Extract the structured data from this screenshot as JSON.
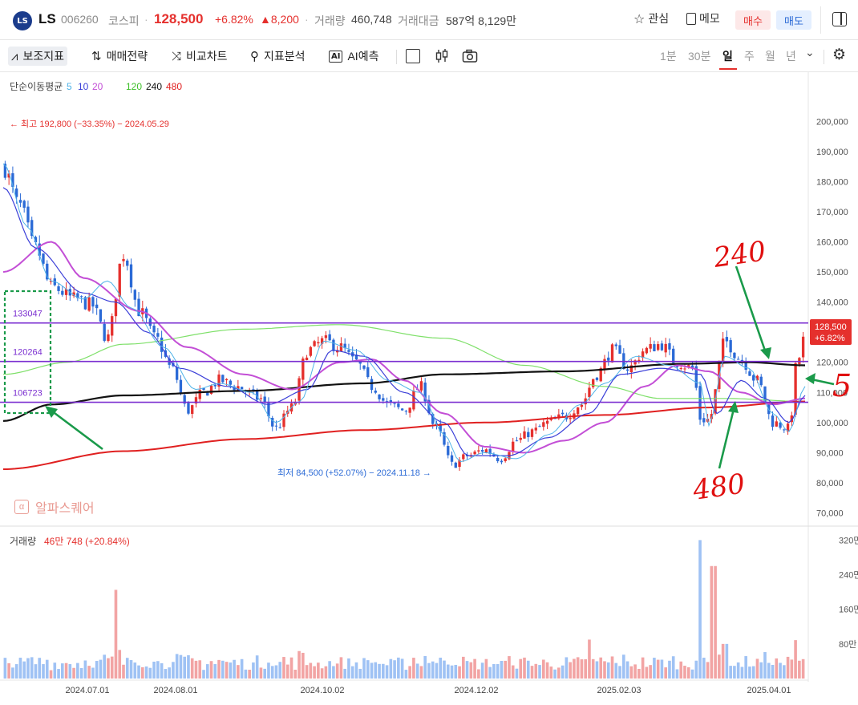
{
  "header": {
    "logo_text": "LS",
    "name": "LS",
    "code": "006260",
    "market": "코스피",
    "dot": "·",
    "price": "128,500",
    "change_pct": "+6.82%",
    "change_abs": "▲8,200",
    "volume_label": "거래량",
    "volume": "460,748",
    "amount_label": "거래대금",
    "amount": "587억 8,129만",
    "watch_label": "관심",
    "memo_label": "메모",
    "buy_label": "매수",
    "sell_label": "매도",
    "icons": [
      "star-icon",
      "memo-icon",
      "panel-toggle-icon"
    ]
  },
  "toolbar": {
    "indicators": "보조지표",
    "strategy": "매매전략",
    "compare": "비교차트",
    "analysis": "지표분석",
    "ai": "AI예측",
    "periods": [
      "1분",
      "30분",
      "일",
      "주",
      "월",
      "년"
    ],
    "selected_period": "일",
    "icons": [
      "indicator-icon",
      "strategy-icon",
      "compare-icon",
      "analysis-icon",
      "ai-icon",
      "draw-box-icon",
      "candle-icon",
      "camera-icon",
      "chevron-down-icon",
      "settings-icon"
    ]
  },
  "watermark": "알파스퀘어",
  "colors": {
    "up": "#e5302d",
    "down": "#2b6ad6",
    "ma5": "#4fb3e8",
    "ma10": "#3b3fd8",
    "ma20": "#c34fd6",
    "ma120": "#7fe06a",
    "ma240": "#111111",
    "ma480": "#e02020",
    "hline": "#7b2fd0",
    "annotation_green": "#1a9a4a",
    "annotation_red": "#e01010"
  },
  "chart_data": {
    "type": "candlestick",
    "ma_legend": {
      "label": "단순이동평균",
      "periods": [
        "5",
        "10",
        "20",
        "120",
        "240",
        "480"
      ]
    },
    "y_axis": {
      "ticks": [
        "200,000",
        "190,000",
        "180,000",
        "170,000",
        "160,000",
        "150,000",
        "140,000",
        "130,000",
        "120,000",
        "110,000",
        "100,000",
        "90,000",
        "80,000",
        "70,000"
      ],
      "range": [
        68000,
        207000
      ]
    },
    "x_axis": {
      "ticks": [
        "2024.07.01",
        "2024.08.01",
        "2024.10.02",
        "2024.12.02",
        "2025.02.03",
        "2025.04.01"
      ]
    },
    "price_tag": {
      "price": "128,500",
      "pct": "+6.82%"
    },
    "high_label": "← 최고 192,800 (−33.35%) − 2024.05.29",
    "low_label": "최저 84,500 (+52.07%) − 2024.11.18 →",
    "horizontal_lines": [
      {
        "value": 133047,
        "label": "133047"
      },
      {
        "value": 120264,
        "label": "120264"
      },
      {
        "value": 106723,
        "label": "106723"
      }
    ],
    "ma_lines": [
      {
        "name": "120",
        "points": [
          [
            0,
            116000
          ],
          [
            0.08,
            120000
          ],
          [
            0.15,
            126000
          ],
          [
            0.3,
            131000
          ],
          [
            0.42,
            132500
          ],
          [
            0.55,
            128000
          ],
          [
            0.65,
            119000
          ],
          [
            0.75,
            112000
          ],
          [
            0.82,
            108000
          ],
          [
            0.9,
            108000
          ],
          [
            1.0,
            107000
          ]
        ]
      },
      {
        "name": "240",
        "points": [
          [
            0,
            100500
          ],
          [
            0.06,
            106000
          ],
          [
            0.15,
            109000
          ],
          [
            0.3,
            110500
          ],
          [
            0.45,
            113000
          ],
          [
            0.55,
            116000
          ],
          [
            0.7,
            117000
          ],
          [
            0.85,
            119500
          ],
          [
            0.93,
            120000
          ],
          [
            1.0,
            119000
          ]
        ]
      },
      {
        "name": "480",
        "points": [
          [
            0,
            84500
          ],
          [
            0.15,
            90500
          ],
          [
            0.3,
            94500
          ],
          [
            0.45,
            97500
          ],
          [
            0.6,
            100000
          ],
          [
            0.75,
            102500
          ],
          [
            0.88,
            105000
          ],
          [
            1.0,
            107000
          ]
        ]
      },
      {
        "name": "20",
        "points": [
          [
            0,
            150000
          ],
          [
            0.06,
            160000
          ],
          [
            0.1,
            148000
          ],
          [
            0.17,
            137000
          ],
          [
            0.23,
            125000
          ],
          [
            0.3,
            116000
          ],
          [
            0.36,
            111000
          ],
          [
            0.42,
            120000
          ],
          [
            0.46,
            121000
          ],
          [
            0.5,
            114000
          ],
          [
            0.55,
            103000
          ],
          [
            0.6,
            92000
          ],
          [
            0.65,
            90000
          ],
          [
            0.7,
            94000
          ],
          [
            0.75,
            100000
          ],
          [
            0.8,
            112000
          ],
          [
            0.84,
            119000
          ],
          [
            0.88,
            117000
          ],
          [
            0.92,
            110000
          ],
          [
            0.96,
            106000
          ],
          [
            1.0,
            108000
          ]
        ]
      },
      {
        "name": "10",
        "points": [
          [
            0,
            178000
          ],
          [
            0.04,
            158000
          ],
          [
            0.1,
            143000
          ],
          [
            0.14,
            140000
          ],
          [
            0.18,
            130000
          ],
          [
            0.22,
            118000
          ],
          [
            0.28,
            112000
          ],
          [
            0.33,
            106000
          ],
          [
            0.38,
            111000
          ],
          [
            0.41,
            124000
          ],
          [
            0.45,
            122000
          ],
          [
            0.5,
            110000
          ],
          [
            0.55,
            100000
          ],
          [
            0.58,
            89000
          ],
          [
            0.63,
            89000
          ],
          [
            0.68,
            95000
          ],
          [
            0.73,
            103000
          ],
          [
            0.77,
            116000
          ],
          [
            0.82,
            118000
          ],
          [
            0.87,
            116000
          ],
          [
            0.89,
            103000
          ],
          [
            0.92,
            114000
          ],
          [
            0.95,
            108000
          ],
          [
            0.98,
            100000
          ],
          [
            1.0,
            109000
          ]
        ]
      },
      {
        "name": "5",
        "points": [
          [
            0,
            186000
          ],
          [
            0.03,
            165000
          ],
          [
            0.06,
            147000
          ],
          [
            0.1,
            141000
          ],
          [
            0.13,
            147000
          ],
          [
            0.16,
            138000
          ],
          [
            0.2,
            125000
          ],
          [
            0.24,
            111000
          ],
          [
            0.27,
            113000
          ],
          [
            0.31,
            110000
          ],
          [
            0.34,
            100000
          ],
          [
            0.37,
            107000
          ],
          [
            0.4,
            127000
          ],
          [
            0.44,
            124000
          ],
          [
            0.48,
            114000
          ],
          [
            0.52,
            110000
          ],
          [
            0.55,
            96000
          ],
          [
            0.57,
            87000
          ],
          [
            0.6,
            90000
          ],
          [
            0.64,
            88000
          ],
          [
            0.68,
            96000
          ],
          [
            0.72,
            106000
          ],
          [
            0.75,
            113000
          ],
          [
            0.79,
            122000
          ],
          [
            0.83,
            119000
          ],
          [
            0.87,
            113000
          ],
          [
            0.88,
            99000
          ],
          [
            0.9,
            122000
          ],
          [
            0.93,
            118000
          ],
          [
            0.96,
            103000
          ],
          [
            0.98,
            97000
          ],
          [
            1.0,
            112000
          ]
        ]
      }
    ],
    "candles_anchor": [
      [
        0,
        185000
      ],
      [
        0.02,
        172000
      ],
      [
        0.04,
        158000
      ],
      [
        0.06,
        145000
      ],
      [
        0.09,
        141000
      ],
      [
        0.11,
        139000
      ],
      [
        0.13,
        128000
      ],
      [
        0.15,
        156000
      ],
      [
        0.17,
        137000
      ],
      [
        0.19,
        128000
      ],
      [
        0.21,
        118000
      ],
      [
        0.23,
        104000
      ],
      [
        0.25,
        110000
      ],
      [
        0.27,
        114000
      ],
      [
        0.29,
        112000
      ],
      [
        0.32,
        108000
      ],
      [
        0.34,
        98000
      ],
      [
        0.36,
        105000
      ],
      [
        0.38,
        124000
      ],
      [
        0.4,
        127000
      ],
      [
        0.42,
        125000
      ],
      [
        0.44,
        120000
      ],
      [
        0.46,
        112000
      ],
      [
        0.48,
        106000
      ],
      [
        0.5,
        104000
      ],
      [
        0.52,
        112000
      ],
      [
        0.54,
        98000
      ],
      [
        0.56,
        86000
      ],
      [
        0.58,
        89000
      ],
      [
        0.6,
        91000
      ],
      [
        0.62,
        88000
      ],
      [
        0.64,
        94000
      ],
      [
        0.66,
        97000
      ],
      [
        0.68,
        100000
      ],
      [
        0.7,
        102000
      ],
      [
        0.72,
        106000
      ],
      [
        0.74,
        116000
      ],
      [
        0.76,
        124000
      ],
      [
        0.78,
        118000
      ],
      [
        0.8,
        124000
      ],
      [
        0.82,
        126000
      ],
      [
        0.84,
        120000
      ],
      [
        0.86,
        118000
      ],
      [
        0.87,
        101000
      ],
      [
        0.88,
        101000
      ],
      [
        0.9,
        127000
      ],
      [
        0.92,
        121000
      ],
      [
        0.94,
        114000
      ],
      [
        0.96,
        100000
      ],
      [
        0.98,
        98000
      ],
      [
        0.99,
        120000
      ],
      [
        1.0,
        128500
      ]
    ],
    "volume": {
      "label": "거래량",
      "value": "46만 748 (+20.84%)",
      "y_ticks": [
        "320만",
        "240만",
        "160만",
        "80만"
      ],
      "range": [
        0,
        3300000
      ],
      "spikes": [
        [
          0.14,
          2050000
        ],
        [
          0.73,
          900000
        ],
        [
          0.87,
          3200000
        ],
        [
          0.885,
          2600000
        ],
        [
          0.9,
          800000
        ]
      ]
    }
  },
  "annotations": {
    "label_240": "240",
    "label_480": "480",
    "label_5": "5"
  }
}
